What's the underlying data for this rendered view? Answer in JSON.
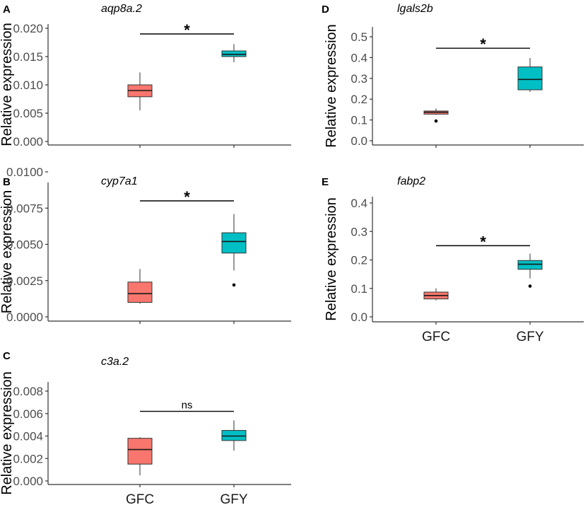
{
  "colors": {
    "GFC": "#F8766D",
    "GFY": "#00BFC4",
    "axis": "#333333",
    "text": "#000000"
  },
  "chart_data": [
    {
      "type": "box",
      "panel": "A",
      "title": "aqp8a.2",
      "ylabel": "Relative expression",
      "xlabel": "",
      "categories": [
        "GFC",
        "GFY"
      ],
      "show_x_labels": false,
      "ylim": [
        0,
        0.021
      ],
      "yticks": [
        0.0,
        0.005,
        0.01,
        0.015,
        0.02
      ],
      "ytick_labels": [
        "0.000",
        "0.005",
        "0.010",
        "0.015",
        "0.020"
      ],
      "boxes": [
        {
          "group": "GFC",
          "min": 0.0055,
          "q1": 0.0079,
          "median": 0.009,
          "q3": 0.01,
          "max": 0.0122,
          "outliers": []
        },
        {
          "group": "GFY",
          "min": 0.014,
          "q1": 0.015,
          "median": 0.0154,
          "q3": 0.016,
          "max": 0.0172,
          "outliers": []
        }
      ],
      "significance": {
        "label": "*",
        "y": 0.019
      }
    },
    {
      "type": "box",
      "panel": "B",
      "title": "cyp7a1",
      "ylabel": "Relative expression",
      "xlabel": "",
      "categories": [
        "GFC",
        "GFY"
      ],
      "show_x_labels": false,
      "ylim": [
        0,
        0.0102
      ],
      "yticks": [
        0.0,
        0.0025,
        0.005,
        0.0075,
        0.01
      ],
      "ytick_labels": [
        "0.0000",
        "0.0025",
        "0.0050",
        "0.0075",
        "0.0100"
      ],
      "boxes": [
        {
          "group": "GFC",
          "min": 0.0009,
          "q1": 0.001,
          "median": 0.0016,
          "q3": 0.0024,
          "max": 0.0033,
          "outliers": []
        },
        {
          "group": "GFY",
          "min": 0.0032,
          "q1": 0.0044,
          "median": 0.0052,
          "q3": 0.0058,
          "max": 0.0071,
          "outliers": [
            0.0022
          ]
        }
      ],
      "significance": {
        "label": "*",
        "y": 0.008
      }
    },
    {
      "type": "box",
      "panel": "C",
      "title": "c3a.2",
      "ylabel": "Relative expression",
      "xlabel": "",
      "categories": [
        "GFC",
        "GFY"
      ],
      "show_x_labels": true,
      "ylim": [
        0,
        0.0081
      ],
      "yticks": [
        0.0,
        0.002,
        0.004,
        0.006,
        0.008
      ],
      "ytick_labels": [
        "0.000",
        "0.002",
        "0.004",
        "0.006",
        "0.008"
      ],
      "boxes": [
        {
          "group": "GFC",
          "min": 0.0005,
          "q1": 0.0015,
          "median": 0.0028,
          "q3": 0.0038,
          "max": 0.0039,
          "outliers": []
        },
        {
          "group": "GFY",
          "min": 0.0027,
          "q1": 0.0036,
          "median": 0.004,
          "q3": 0.0045,
          "max": 0.0054,
          "outliers": []
        }
      ],
      "significance": {
        "label": "ns",
        "y": 0.0062
      }
    },
    {
      "type": "box",
      "panel": "D",
      "title": "lgals2b",
      "ylabel": "Relative expression",
      "xlabel": "",
      "categories": [
        "GFC",
        "GFY"
      ],
      "show_x_labels": false,
      "ylim": [
        0,
        0.52
      ],
      "yticks": [
        0.0,
        0.1,
        0.2,
        0.3,
        0.4,
        0.5
      ],
      "ytick_labels": [
        "0.0",
        "0.1",
        "0.2",
        "0.3",
        "0.4",
        "0.5"
      ],
      "boxes": [
        {
          "group": "GFC",
          "min": 0.125,
          "q1": 0.128,
          "median": 0.137,
          "q3": 0.143,
          "max": 0.155,
          "outliers": [
            0.095
          ]
        },
        {
          "group": "GFY",
          "min": 0.235,
          "q1": 0.245,
          "median": 0.295,
          "q3": 0.355,
          "max": 0.398,
          "outliers": []
        }
      ],
      "significance": {
        "label": "*",
        "y": 0.445
      }
    },
    {
      "type": "box",
      "panel": "E",
      "title": "fabp2",
      "ylabel": "Relative expression",
      "xlabel": "",
      "categories": [
        "GFC",
        "GFY"
      ],
      "show_x_labels": true,
      "ylim": [
        0,
        0.41
      ],
      "yticks": [
        0.0,
        0.1,
        0.2,
        0.3,
        0.4
      ],
      "ytick_labels": [
        "0.0",
        "0.1",
        "0.2",
        "0.3",
        "0.4"
      ],
      "boxes": [
        {
          "group": "GFC",
          "min": 0.058,
          "q1": 0.063,
          "median": 0.075,
          "q3": 0.087,
          "max": 0.1,
          "outliers": []
        },
        {
          "group": "GFY",
          "min": 0.135,
          "q1": 0.167,
          "median": 0.185,
          "q3": 0.198,
          "max": 0.222,
          "outliers": [
            0.108
          ]
        }
      ],
      "significance": {
        "label": "*",
        "y": 0.25
      }
    }
  ]
}
